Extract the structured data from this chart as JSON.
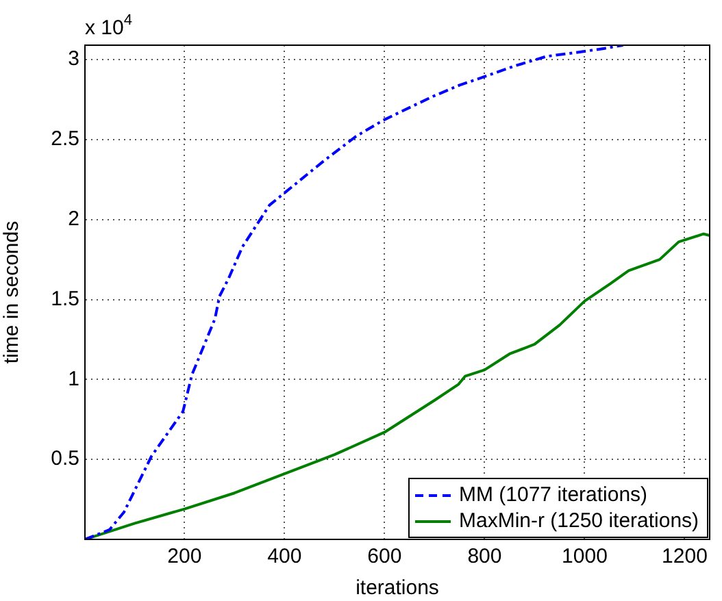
{
  "chart_data": {
    "type": "line",
    "xlabel": "iterations",
    "ylabel": "time in seconds",
    "annotations": [
      "x 10$^{4}$"
    ],
    "xlim": [
      1,
      1250
    ],
    "xticks": [
      200,
      400,
      600,
      800,
      1000,
      1200
    ],
    "ylim": [
      0,
      3.09
    ],
    "yticks": [
      0.5,
      1,
      1.5,
      2,
      2.5,
      3
    ],
    "grid": true,
    "legend": "bottom right",
    "marker": "none",
    "series": [
      {
        "name": "MM (1077 iterations)",
        "color": "#0000ff",
        "line_style": "dashed",
        "x": [
          1,
          50,
          79,
          134,
          197,
          215,
          261,
          270,
          288,
          316,
          370,
          425,
          480,
          543,
          597,
          650,
          697,
          750,
          797,
          860,
          924,
          997,
          1040,
          1077
        ],
        "values": [
          0,
          0.06,
          0.17,
          0.52,
          0.8,
          1.03,
          1.38,
          1.52,
          1.63,
          1.83,
          2.09,
          2.23,
          2.37,
          2.52,
          2.62,
          2.7,
          2.77,
          2.84,
          2.89,
          2.96,
          3.02,
          3.05,
          3.07,
          3.09
        ]
      },
      {
        "name": "MaxMin-r (1250 iterations)",
        "color": "#007f00",
        "line_style": "solid",
        "x": [
          1,
          100,
          200,
          300,
          400,
          500,
          600,
          700,
          748,
          761,
          800,
          850,
          900,
          950,
          1000,
          1052,
          1088,
          1150,
          1188,
          1238,
          1250
        ],
        "values": [
          0,
          0.1,
          0.19,
          0.29,
          0.41,
          0.53,
          0.67,
          0.87,
          0.97,
          1.02,
          1.06,
          1.16,
          1.22,
          1.34,
          1.49,
          1.6,
          1.68,
          1.75,
          1.86,
          1.91,
          1.9
        ]
      }
    ]
  }
}
